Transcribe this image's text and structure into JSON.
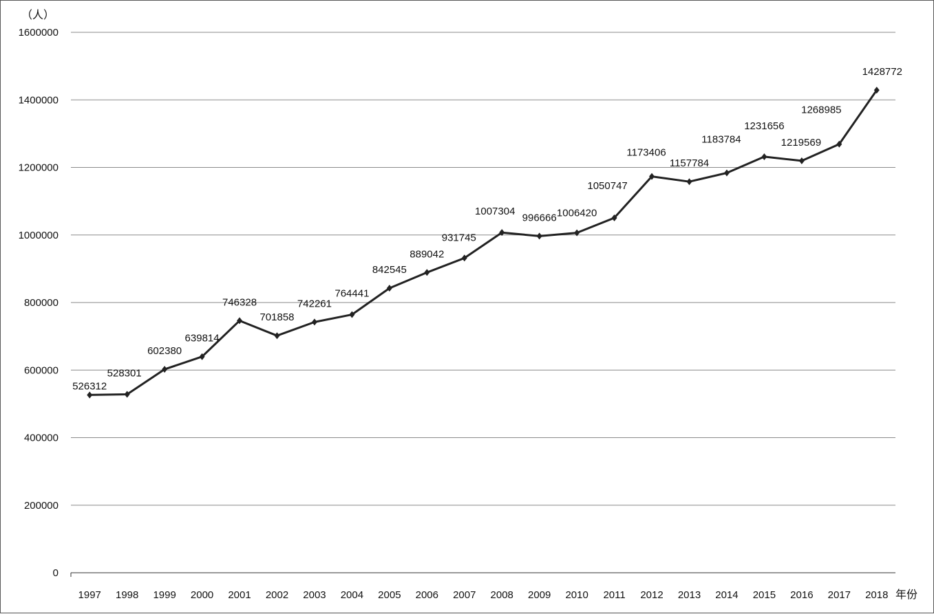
{
  "chart_data": {
    "type": "line",
    "ylabel": "（人）",
    "xlabel": "年份",
    "ylim": [
      0,
      1600000
    ],
    "yticks": [
      "0",
      "200000",
      "400000",
      "600000",
      "800000",
      "1000000",
      "1200000",
      "1400000",
      "1600000"
    ],
    "grid": true,
    "marker": "diamond",
    "line_color": "#222222",
    "categories": [
      "1997",
      "1998",
      "1999",
      "2000",
      "2001",
      "2002",
      "2003",
      "2004",
      "2005",
      "2006",
      "2007",
      "2008",
      "2009",
      "2010",
      "2011",
      "2012",
      "2013",
      "2014",
      "2015",
      "2016",
      "2017",
      "2018"
    ],
    "series": [
      {
        "values": [
          526312,
          528301,
          602380,
          639814,
          746328,
          701858,
          742261,
          764441,
          842545,
          889042,
          931745,
          1007304,
          996666,
          1006420,
          1050747,
          1173406,
          1157784,
          1183784,
          1231656,
          1219569,
          1268985,
          1428772
        ],
        "labels": [
          "526312",
          "528301",
          "602380",
          "639814",
          "746328",
          "701858",
          "742261",
          "764441",
          "842545",
          "889042",
          "931745",
          "1007304",
          "996666",
          "1006420",
          "1050747",
          "1173406",
          "1157784",
          "1183784",
          "1231656",
          "1219569",
          "1268985",
          "1428772"
        ]
      }
    ]
  }
}
